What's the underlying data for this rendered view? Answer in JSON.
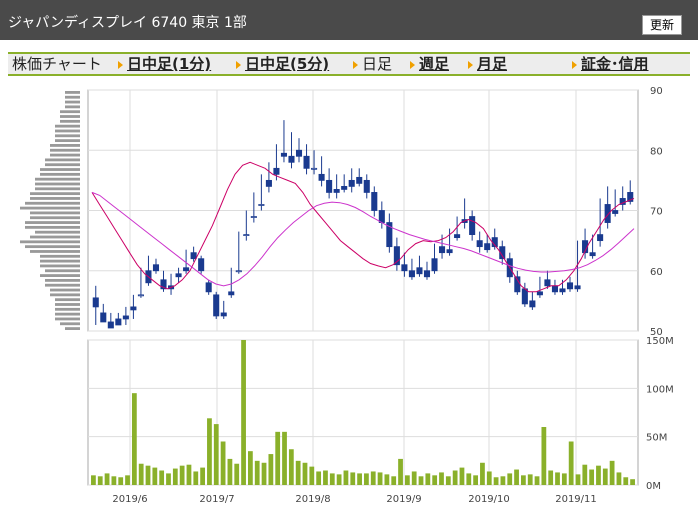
{
  "header": {
    "title": "ジャパンディスプレイ 6740 東京 1部",
    "refresh_label": "更新"
  },
  "tabs": [
    {
      "label": "株価チャート",
      "link": false,
      "arrow": false
    },
    {
      "label": "日中足(1分)",
      "link": true,
      "arrow": true
    },
    {
      "label": "日中足(5分)",
      "link": true,
      "arrow": true
    },
    {
      "label": "日足",
      "link": false,
      "arrow": true
    },
    {
      "label": "週足",
      "link": true,
      "arrow": true
    },
    {
      "label": "月足",
      "link": true,
      "arrow": true
    },
    {
      "label": "証金･信用",
      "link": true,
      "arrow": true
    }
  ],
  "colors": {
    "up": "#ffffff",
    "down": "#1a3a8f",
    "ma_short": "#cc0066",
    "ma_long": "#cc33cc",
    "volume": "#8ab02a",
    "volume_profile": "#999999",
    "header_bg": "#4a4a4a",
    "accent": "#8ab02a"
  },
  "chart_data": [
    {
      "type": "candlestick",
      "ylim": [
        50,
        90
      ],
      "yticks": [
        90,
        80,
        70,
        60,
        50
      ],
      "xticks": [
        "2019/6",
        "2019/7",
        "2019/8",
        "2019/9",
        "2019/10",
        "2019/11"
      ],
      "grid": true,
      "moving_averages": [
        {
          "values": [
            73,
            71,
            69,
            67,
            65,
            63,
            61,
            59.5,
            58.5,
            57.5,
            57,
            57.5,
            58.5,
            60,
            62.5,
            65,
            67.5,
            70.5,
            73.5,
            76,
            77.5,
            78,
            77.5,
            77,
            76,
            75.5,
            75,
            74.5,
            73,
            71,
            69.5,
            68,
            66.5,
            65,
            64,
            63,
            62,
            61.2,
            60.8,
            60.5,
            61,
            62,
            63.5,
            64.5,
            65,
            64.8,
            65,
            65.5,
            66.5,
            68,
            68.5,
            68,
            67,
            65,
            63.5,
            61.5,
            59.5,
            57.5,
            56.5,
            56.5,
            57,
            57.5,
            57.5,
            58.5,
            60,
            62,
            64.5,
            66.5,
            68.5,
            70,
            71,
            71.5,
            72
          ]
        },
        {
          "values": [
            73,
            72.5,
            71.5,
            70.5,
            69.5,
            68.5,
            67.5,
            66.5,
            65.5,
            64.5,
            63.5,
            62.5,
            61.5,
            60.5,
            59.5,
            58.5,
            57.8,
            57.5,
            57.8,
            58.5,
            59.5,
            60.8,
            62.3,
            64,
            65.5,
            66.8,
            68,
            69,
            70,
            70.8,
            71.2,
            71.4,
            71.3,
            71,
            70.5,
            69.8,
            69,
            68.3,
            67.6,
            67,
            66.5,
            66,
            65.6,
            65.2,
            64.9,
            64.6,
            64.3,
            64,
            63.7,
            63.3,
            62.8,
            62.3,
            61.8,
            61.3,
            60.8,
            60.4,
            60.1,
            59.9,
            59.8,
            59.8,
            59.9,
            60,
            60.2,
            60.5,
            61,
            61.7,
            62.5,
            63.5,
            64.6,
            65.8,
            67
          ]
        }
      ],
      "candles": [
        [
          55.5,
          57.5,
          54,
          51
        ],
        [
          53,
          54.5,
          51.5,
          51.5
        ],
        [
          51.5,
          53,
          50.5,
          50.5
        ],
        [
          52,
          53,
          51,
          51
        ],
        [
          52.5,
          54,
          52,
          51
        ],
        [
          54,
          56,
          53.5,
          52
        ],
        [
          56,
          60.5,
          56,
          55.5
        ],
        [
          60,
          62.5,
          58,
          57.5
        ],
        [
          61,
          62,
          60,
          59.5
        ],
        [
          58.5,
          60,
          57,
          56.5
        ],
        [
          57.5,
          59.5,
          57,
          56
        ],
        [
          59.5,
          60.5,
          59,
          58
        ],
        [
          60.5,
          63.5,
          60,
          59.5
        ],
        [
          63,
          64,
          62,
          61.5
        ],
        [
          62,
          62.5,
          60,
          59.5
        ],
        [
          58,
          58.5,
          56.5,
          56
        ],
        [
          56,
          56.5,
          52.5,
          52
        ],
        [
          53,
          55,
          52.5,
          52
        ],
        [
          56.5,
          60.5,
          56,
          55.5
        ],
        [
          60,
          66.5,
          60,
          59.5
        ],
        [
          66,
          70,
          66,
          65
        ],
        [
          69,
          73,
          69,
          68
        ],
        [
          71,
          76,
          71,
          70
        ],
        [
          75,
          78,
          74,
          73
        ],
        [
          77,
          81,
          76,
          75
        ],
        [
          79.5,
          85,
          79,
          78
        ],
        [
          79,
          83,
          78,
          77
        ],
        [
          80,
          82,
          79,
          78
        ],
        [
          79,
          81,
          77,
          76
        ],
        [
          77,
          80,
          77,
          76
        ],
        [
          76,
          79,
          75,
          74
        ],
        [
          75,
          77,
          73,
          72
        ],
        [
          73.5,
          76,
          73,
          72
        ],
        [
          74,
          76,
          73.5,
          73
        ],
        [
          75,
          77,
          74,
          73
        ],
        [
          75.5,
          77,
          74.5,
          74
        ],
        [
          75,
          76,
          73,
          72
        ],
        [
          73,
          74,
          70,
          69
        ],
        [
          70,
          71.5,
          68,
          67
        ],
        [
          68,
          69.5,
          64,
          63
        ],
        [
          64,
          65.5,
          61,
          60
        ],
        [
          61,
          63,
          60,
          59
        ],
        [
          60,
          62,
          59,
          58.5
        ],
        [
          60.5,
          62.5,
          59.5,
          59
        ],
        [
          60,
          61.5,
          59,
          58.5
        ],
        [
          62,
          64.5,
          60,
          59.5
        ],
        [
          64,
          66,
          63,
          62
        ],
        [
          63.5,
          67,
          63,
          62.5
        ],
        [
          66,
          69,
          65.5,
          65
        ],
        [
          68.5,
          72,
          68,
          67
        ],
        [
          69,
          70,
          66,
          65
        ],
        [
          65,
          66.5,
          64,
          63
        ],
        [
          64.5,
          66,
          63.5,
          63
        ],
        [
          65.5,
          67,
          64,
          63.5
        ],
        [
          64,
          65,
          62,
          61
        ],
        [
          62,
          63,
          59,
          58
        ],
        [
          59,
          60,
          56.5,
          56
        ],
        [
          57,
          58,
          54.5,
          54
        ],
        [
          55,
          56.5,
          54,
          53.5
        ],
        [
          56.5,
          59,
          56,
          55.5
        ],
        [
          58.5,
          60,
          57.5,
          57
        ],
        [
          57.5,
          58.5,
          56.5,
          56
        ],
        [
          57,
          58.5,
          56.5,
          56
        ],
        [
          58,
          59,
          57,
          56.5
        ],
        [
          57.5,
          65,
          57,
          56.5
        ],
        [
          65,
          67,
          63,
          62
        ],
        [
          63,
          66,
          62.5,
          62
        ],
        [
          66,
          72,
          65,
          64
        ],
        [
          71,
          74,
          68,
          67
        ],
        [
          70,
          73.5,
          69.5,
          69
        ],
        [
          72,
          74,
          71,
          70
        ],
        [
          73,
          75,
          71.5,
          71
        ]
      ]
    },
    {
      "type": "bar",
      "ylim": [
        0,
        150
      ],
      "yticks": [
        "150M",
        "100M",
        "50M",
        "0M"
      ],
      "volumes": [
        10,
        9,
        12,
        9,
        8,
        10,
        95,
        22,
        20,
        18,
        15,
        12,
        17,
        20,
        21,
        14,
        18,
        69,
        63,
        45,
        27,
        22,
        150,
        35,
        25,
        23,
        32,
        55,
        55,
        37,
        25,
        23,
        19,
        14,
        15,
        12,
        11,
        15,
        13,
        12,
        12,
        14,
        13,
        11,
        9,
        27,
        10,
        14,
        9,
        12,
        10,
        13,
        9,
        15,
        18,
        12,
        10,
        23,
        14,
        8,
        9,
        12,
        16,
        10,
        11,
        9,
        60,
        15,
        13,
        12,
        45,
        11,
        21,
        16,
        20,
        17,
        25,
        13,
        8,
        6
      ]
    }
  ],
  "price_profile": [
    3,
    4,
    5,
    5,
    5,
    5,
    5,
    6,
    6,
    7,
    7,
    8,
    7,
    8,
    8,
    8,
    10,
    11,
    12,
    10,
    9,
    11,
    11,
    10,
    10,
    12,
    11,
    10,
    10,
    9,
    9,
    9,
    8,
    8,
    7,
    7,
    6,
    6,
    6,
    5,
    5,
    5,
    5,
    4,
    4,
    4,
    3,
    3,
    3,
    3
  ]
}
